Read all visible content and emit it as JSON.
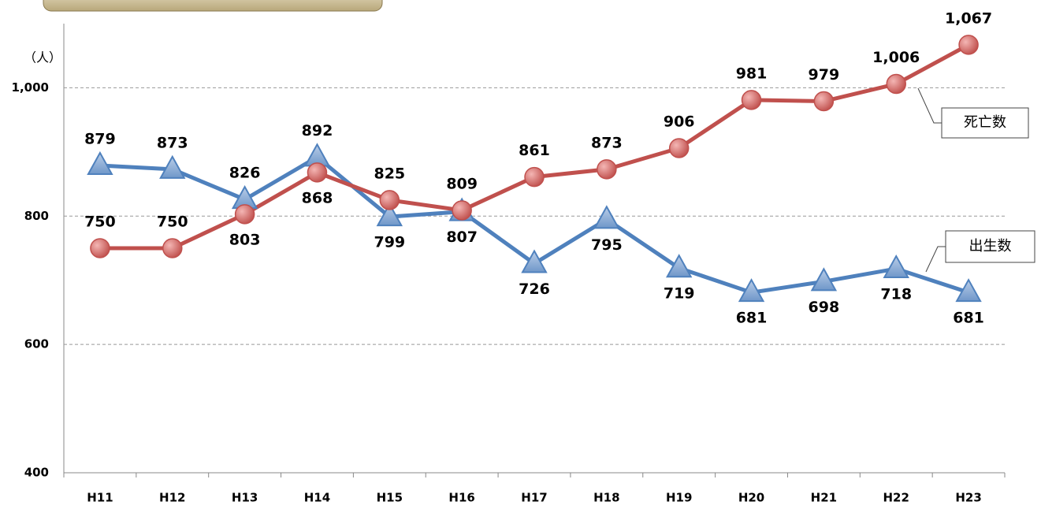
{
  "chart_data": {
    "type": "line",
    "y_label": "（人）",
    "categories": [
      "H11",
      "H12",
      "H13",
      "H14",
      "H15",
      "H16",
      "H17",
      "H18",
      "H19",
      "H20",
      "H21",
      "H22",
      "H23"
    ],
    "series": [
      {
        "name": "出生数",
        "color": "#4f81bd",
        "marker": "triangle",
        "values": [
          879,
          873,
          826,
          892,
          799,
          807,
          726,
          795,
          719,
          681,
          698,
          718,
          681
        ]
      },
      {
        "name": "死亡数",
        "color": "#c0504d",
        "marker": "circle",
        "values": [
          750,
          750,
          803,
          868,
          825,
          809,
          861,
          873,
          906,
          981,
          979,
          1006,
          1067
        ],
        "value_labels": [
          "750",
          "750",
          "803",
          "868",
          "825",
          "809",
          "861",
          "873",
          "906",
          "981",
          "979",
          "1,006",
          "1,067"
        ]
      }
    ],
    "ylim": [
      400,
      1100
    ],
    "yticks": [
      400,
      600,
      800,
      {
        "value": 1000,
        "label": "1,000"
      }
    ],
    "grid": true
  }
}
